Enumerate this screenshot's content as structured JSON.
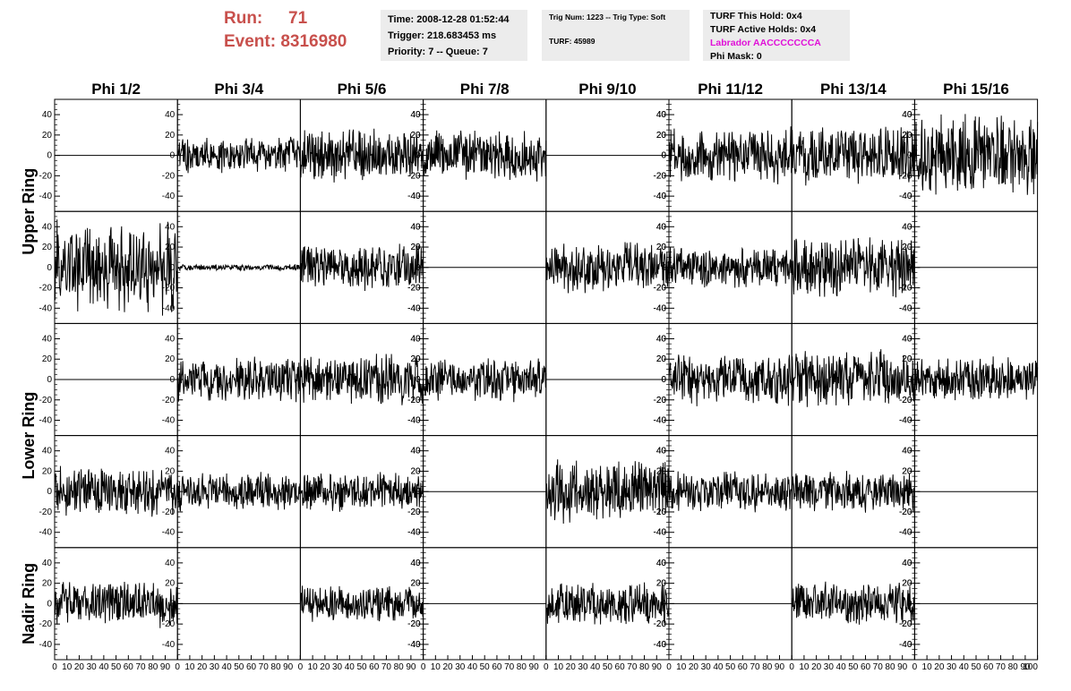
{
  "run": {
    "run_label": "Run:",
    "run_value": "71",
    "event_label": "Event:",
    "event_value": "8316980"
  },
  "info": {
    "time": "Time: 2008-12-28 01:52:44",
    "trigger": "Trigger: 218.683453 ms",
    "priority": "Priority: 7 -- Queue: 7",
    "trig": "Trig Num: 1223 -- Trig Type: Soft",
    "turf": "TURF: 45989",
    "turf_this_hold": "TURF This Hold: 0x4",
    "turf_active_holds": "TURF Active Holds: 0x4",
    "labrador": "Labrador AACCCCCCCA",
    "phi_mask": "Phi Mask: 0"
  },
  "colors": {
    "run_text": "#c8504c",
    "labrador_text": "#e010d8",
    "panel_bg": "#ececec",
    "trace": "#000000"
  },
  "chart_data": {
    "type": "line",
    "columns": [
      "Phi 1/2",
      "Phi 3/4",
      "Phi 5/6",
      "Phi 7/8",
      "Phi 9/10",
      "Phi 11/12",
      "Phi 13/14",
      "Phi 15/16"
    ],
    "ring_labels": [
      {
        "text": "Upper Ring",
        "rows": [
          0,
          1
        ]
      },
      {
        "text": "Lower Ring",
        "rows": [
          2,
          3
        ]
      },
      {
        "text": "Nadir Ring",
        "rows": [
          4
        ]
      }
    ],
    "xlim": [
      0,
      100
    ],
    "ylim": [
      -55,
      55
    ],
    "y_ticks": [
      -40,
      -20,
      0,
      20,
      40
    ],
    "y_tick_labels": [
      "-40",
      "-20",
      "0",
      "20",
      "40"
    ],
    "x_tick_labels": [
      "0",
      "10",
      "20",
      "30",
      "40",
      "50",
      "60",
      "70",
      "80",
      "90",
      "100"
    ],
    "waveform_amplitude": [
      [
        0,
        12,
        17,
        17,
        0,
        18,
        18,
        26
      ],
      [
        30,
        2,
        15,
        0,
        16,
        13,
        20,
        0
      ],
      [
        0,
        14,
        16,
        14,
        0,
        17,
        19,
        14
      ],
      [
        16,
        12,
        13,
        0,
        20,
        13,
        14,
        0
      ],
      [
        15,
        0,
        12,
        0,
        14,
        0,
        14,
        0
      ]
    ]
  }
}
